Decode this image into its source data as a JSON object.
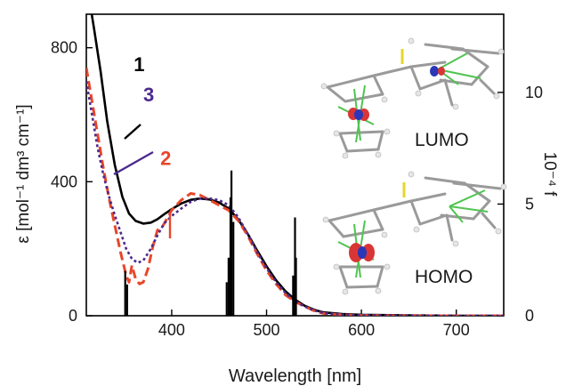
{
  "chart_data": {
    "type": "line",
    "xlabel": "Wavelength [nm]",
    "ylabel": "ε [mol⁻¹ dm³ cm⁻¹]",
    "y2label": "10⁻⁴ f",
    "xlim": [
      310,
      750
    ],
    "ylim": [
      0,
      900
    ],
    "y2lim": [
      0,
      13.5
    ],
    "xticks": [
      400,
      500,
      600,
      700
    ],
    "yticks": [
      0,
      400,
      800
    ],
    "y2ticks": [
      0,
      5,
      10
    ],
    "x_tick_labels": [
      "400",
      "500",
      "600",
      "700"
    ],
    "y_tick_labels": [
      "0",
      "400",
      "800"
    ],
    "y2_tick_labels": [
      "0",
      "5",
      "10"
    ],
    "grid": false,
    "series": [
      {
        "name": "1",
        "color": "#000000",
        "style": "solid",
        "x": [
          310,
          318,
          325,
          332,
          340,
          348,
          355,
          362,
          370,
          378,
          385,
          392,
          400,
          410,
          420,
          430,
          440,
          450,
          460,
          470,
          480,
          490,
          500,
          510,
          520,
          530,
          540,
          550,
          560,
          580,
          600,
          650,
          700,
          750
        ],
        "y": [
          1000,
          860,
          730,
          580,
          450,
          355,
          305,
          283,
          275,
          278,
          288,
          303,
          318,
          335,
          346,
          350,
          347,
          338,
          320,
          288,
          245,
          195,
          148,
          106,
          73,
          48,
          30,
          18,
          10,
          5,
          3,
          1,
          0,
          0
        ]
      },
      {
        "name": "2",
        "color": "#e8462a",
        "style": "dashed",
        "x": [
          310,
          316,
          322,
          328,
          334,
          340,
          346,
          352,
          355,
          358,
          362,
          366,
          370,
          375,
          380,
          385,
          390,
          400,
          410,
          420,
          430,
          440,
          450,
          460,
          470,
          480,
          490,
          500,
          510,
          520,
          530,
          540,
          550,
          560,
          580,
          600,
          650,
          700,
          750
        ],
        "y": [
          740,
          640,
          540,
          440,
          350,
          270,
          190,
          120,
          100,
          150,
          110,
          95,
          100,
          140,
          205,
          255,
          265,
          315,
          345,
          365,
          360,
          345,
          330,
          315,
          285,
          240,
          185,
          135,
          95,
          62,
          42,
          28,
          15,
          7,
          3,
          1,
          0,
          0,
          0
        ]
      },
      {
        "name": "3",
        "color": "#4b2a8c",
        "style": "dotted",
        "x": [
          310,
          316,
          322,
          328,
          334,
          340,
          346,
          352,
          358,
          364,
          370,
          378,
          385,
          392,
          400,
          410,
          420,
          430,
          440,
          450,
          460,
          470,
          480,
          490,
          500,
          510,
          520,
          530,
          540,
          550,
          560,
          580,
          600,
          650,
          700,
          750
        ],
        "y": [
          700,
          600,
          500,
          420,
          355,
          300,
          250,
          200,
          170,
          158,
          165,
          200,
          240,
          275,
          298,
          320,
          340,
          350,
          350,
          345,
          330,
          295,
          245,
          190,
          142,
          100,
          68,
          44,
          28,
          16,
          8,
          3,
          1,
          0,
          0,
          0
        ]
      }
    ],
    "oscillator_bars": {
      "axis": "y2",
      "color": "#000000",
      "x": [
        351,
        353,
        458,
        460,
        462,
        463,
        465,
        528,
        530,
        531
      ],
      "f": [
        2.0,
        1.4,
        1.5,
        2.6,
        5.3,
        6.5,
        4.2,
        1.8,
        4.4,
        2.6
      ]
    },
    "curve_labels": [
      {
        "text": "1",
        "color": "#000000",
        "x": 360,
        "y": 730
      },
      {
        "text": "3",
        "color": "#4b2a8c",
        "x": 370,
        "y": 640
      },
      {
        "text": "2",
        "color": "#e8462a",
        "x": 388,
        "y": 450
      }
    ],
    "orbital_labels": [
      "LUMO",
      "HOMO"
    ]
  }
}
